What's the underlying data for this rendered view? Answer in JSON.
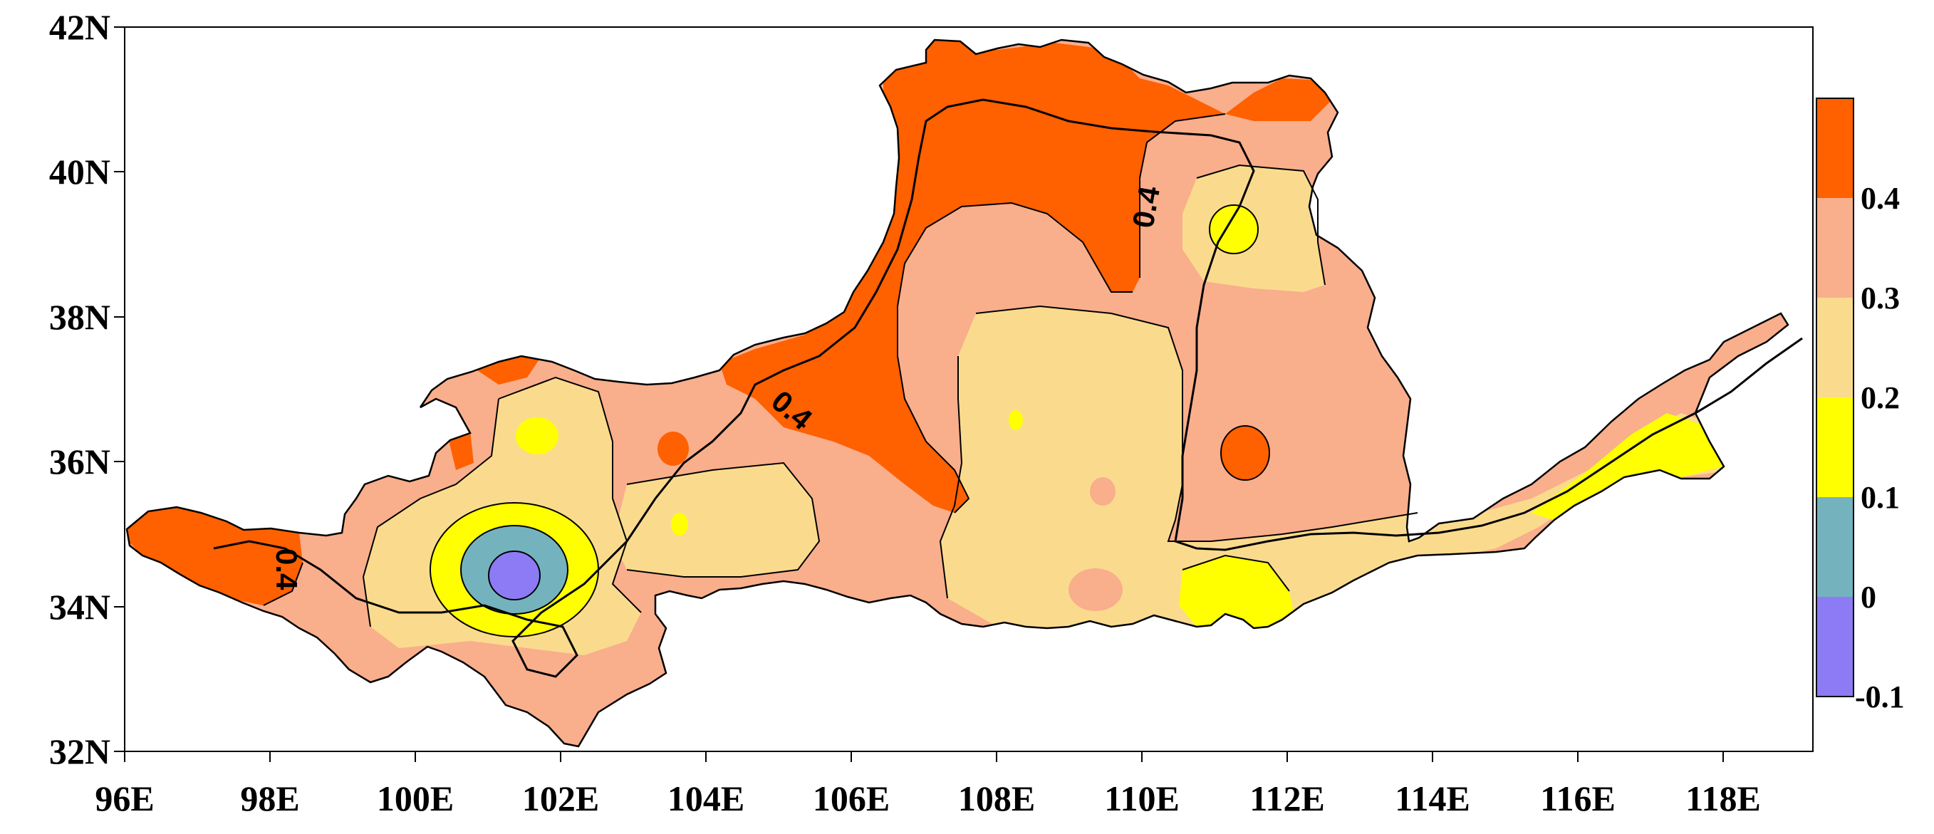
{
  "map": {
    "type": "filled-contour map",
    "region": "river basin",
    "lon_range_deg": [
      96,
      119.3
    ],
    "lat_range_deg": [
      32,
      42
    ],
    "x_ticks": [
      "96E",
      "98E",
      "100E",
      "102E",
      "104E",
      "106E",
      "108E",
      "110E",
      "112E",
      "114E",
      "116E",
      "118E"
    ],
    "y_ticks": [
      "32N",
      "34N",
      "36N",
      "38N",
      "40N",
      "42N"
    ],
    "contour_labels": [
      "0.4",
      "0.4",
      "0.4"
    ],
    "colors": {
      "lt_-0.1_0": "#8C7BF5",
      "0_0.1": "#74B3BE",
      "0.1_0.2": "#FFFF00",
      "0.2_0.3": "#FADB8E",
      "0.3_0.4": "#F9AE8C",
      "gt_0.4": "#FF6000"
    }
  },
  "colorbar": {
    "labels": [
      "0.4",
      "0.3",
      "0.2",
      "0.1",
      "0",
      "-0.1"
    ],
    "colors": [
      "#FF6000",
      "#F9AE8C",
      "#FADB8E",
      "#FFFF00",
      "#74B3BE",
      "#8C7BF5"
    ]
  }
}
